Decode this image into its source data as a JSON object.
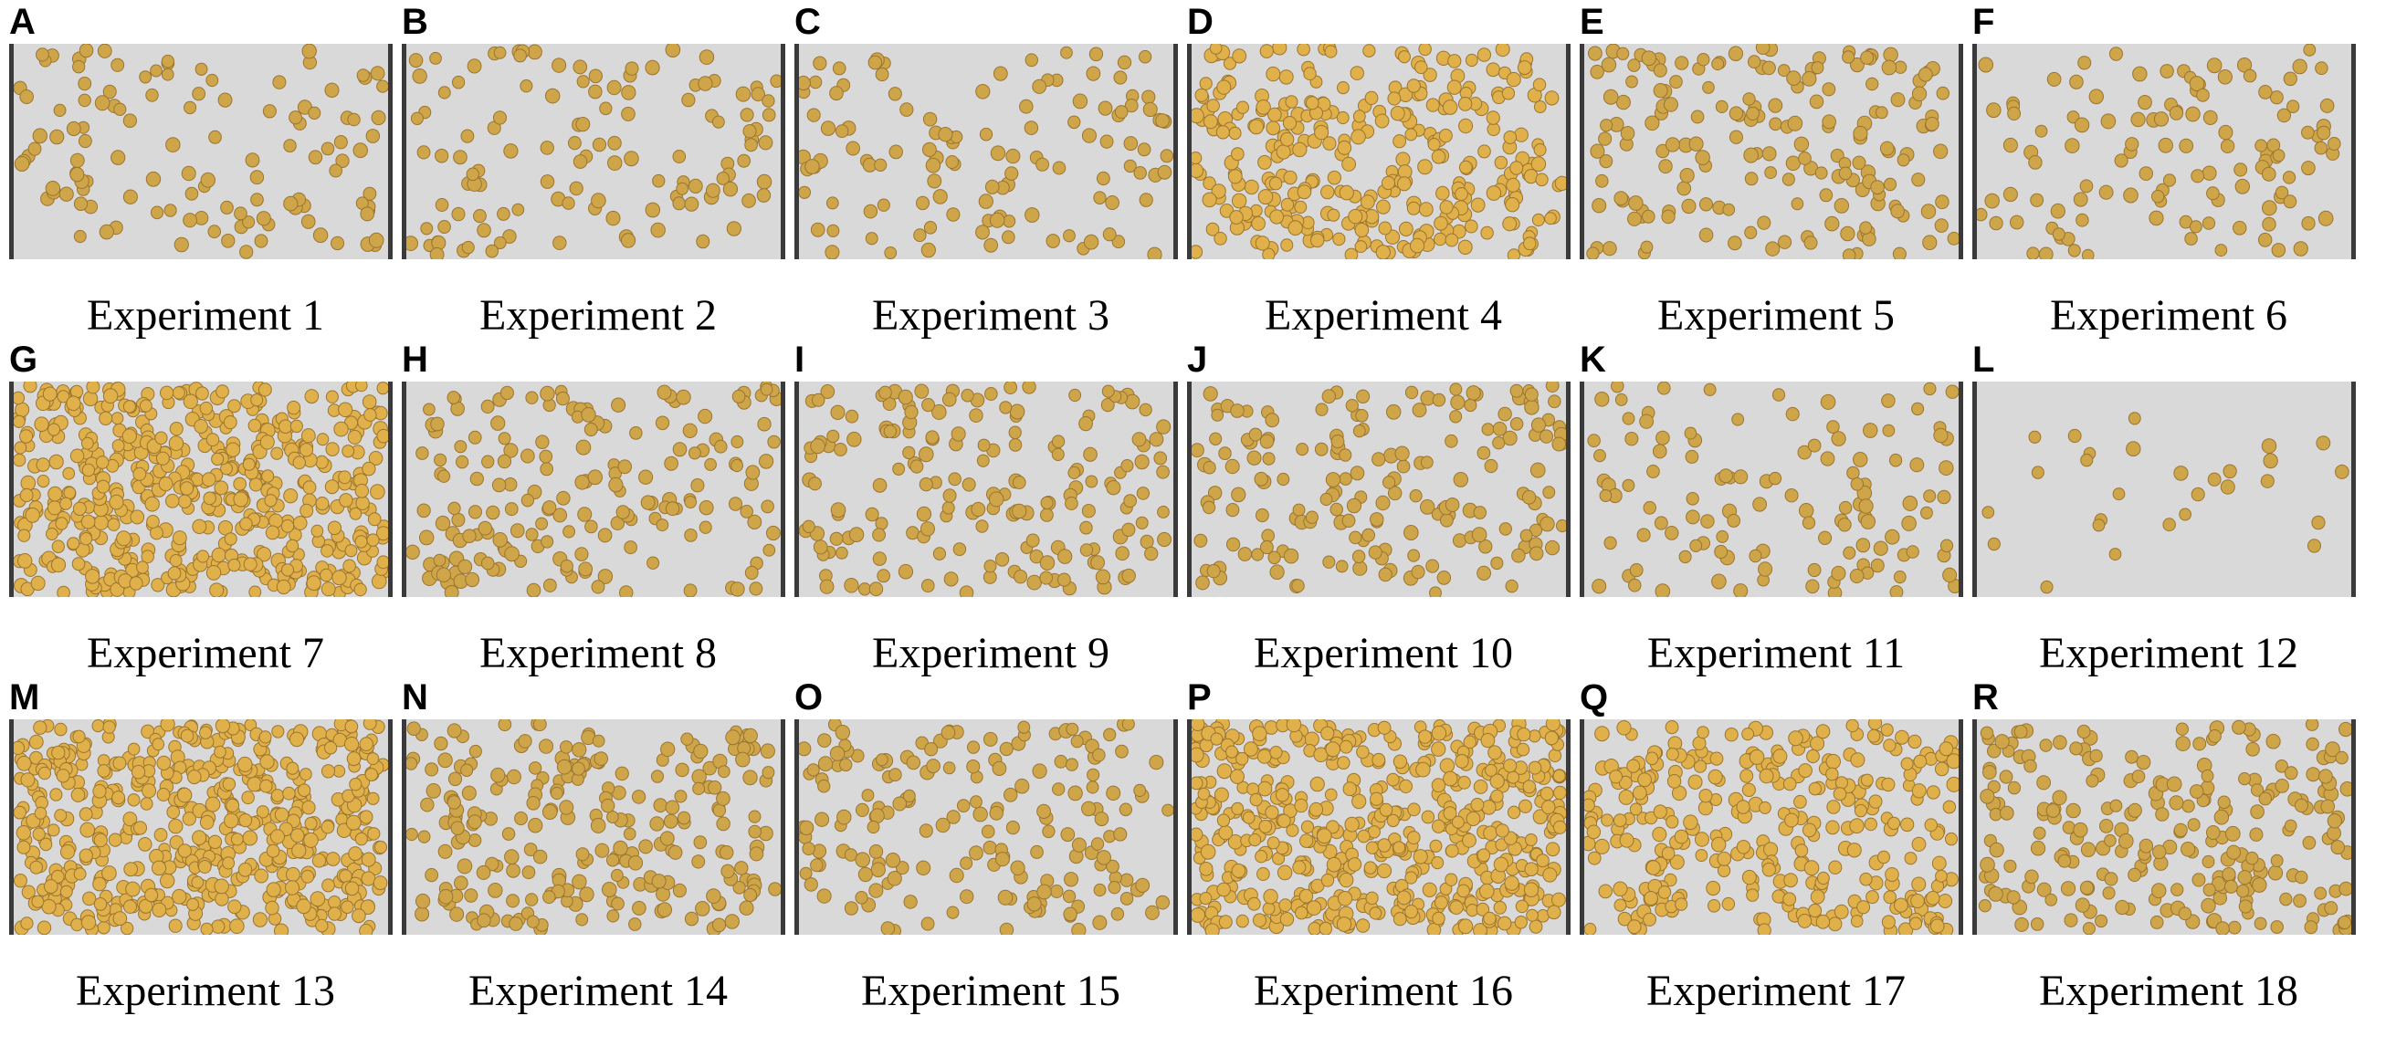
{
  "figure": {
    "panels": [
      {
        "letter": "A",
        "caption": "Experiment 1",
        "density": "low"
      },
      {
        "letter": "B",
        "caption": "Experiment 2",
        "density": "low"
      },
      {
        "letter": "C",
        "caption": "Experiment 3",
        "density": "low"
      },
      {
        "letter": "D",
        "caption": "Experiment 4",
        "density": "high"
      },
      {
        "letter": "E",
        "caption": "Experiment 5",
        "density": "medium"
      },
      {
        "letter": "F",
        "caption": "Experiment 6",
        "density": "low"
      },
      {
        "letter": "G",
        "caption": "Experiment 7",
        "density": "very-high"
      },
      {
        "letter": "H",
        "caption": "Experiment 8",
        "density": "medium"
      },
      {
        "letter": "I",
        "caption": "Experiment 9",
        "density": "medium"
      },
      {
        "letter": "J",
        "caption": "Experiment 10",
        "density": "medium"
      },
      {
        "letter": "K",
        "caption": "Experiment 11",
        "density": "low"
      },
      {
        "letter": "L",
        "caption": "Experiment 12",
        "density": "very-low"
      },
      {
        "letter": "M",
        "caption": "Experiment 13",
        "density": "very-high"
      },
      {
        "letter": "N",
        "caption": "Experiment 14",
        "density": "medium-high"
      },
      {
        "letter": "O",
        "caption": "Experiment 15",
        "density": "medium"
      },
      {
        "letter": "P",
        "caption": "Experiment 16",
        "density": "very-high"
      },
      {
        "letter": "Q",
        "caption": "Experiment 17",
        "density": "high"
      },
      {
        "letter": "R",
        "caption": "Experiment 18",
        "density": "medium-high"
      }
    ],
    "colors": {
      "background": "#d9d9d9",
      "seed_fill": "#cfa54a",
      "seed_dark": "#9a7430",
      "seed_dense": "#e0b04a"
    }
  }
}
